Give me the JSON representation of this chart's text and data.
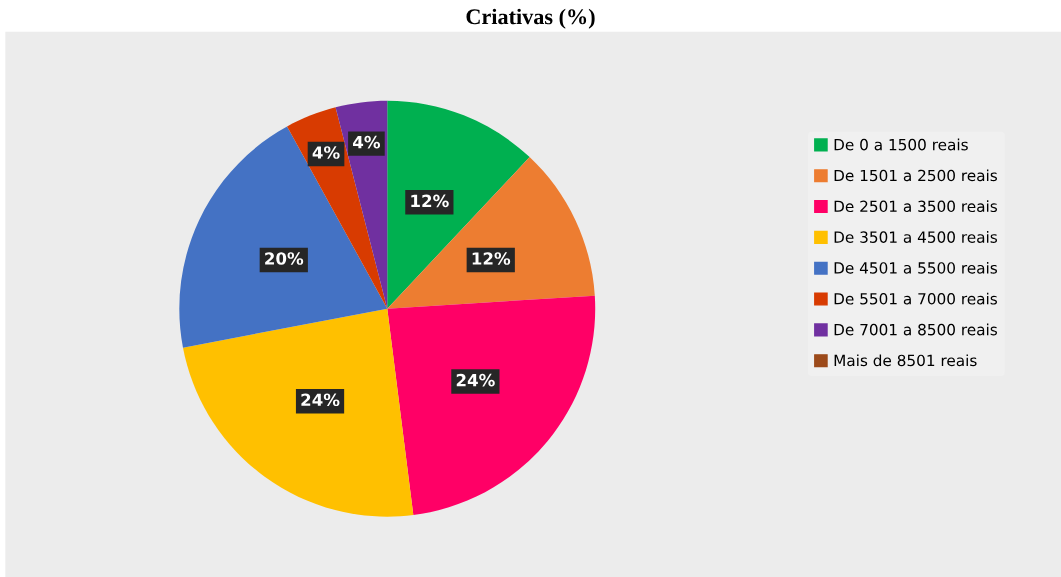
{
  "chart_data": {
    "type": "pie",
    "title": "Criativas (%)",
    "categories": [
      "De 0 a 1500 reais",
      "De 1501 a 2500 reais",
      "De 2501 a 3500 reais",
      "De 3501 a 4500 reais",
      "De 4501 a 5500 reais",
      "De 5501 a 7000 reais",
      "De 7001 a 8500 reais",
      "Mais de 8501 reais"
    ],
    "values": [
      12,
      12,
      24,
      24,
      20,
      4,
      4,
      0
    ],
    "value_labels": [
      "12%",
      "12%",
      "24%",
      "24%",
      "20%",
      "4%",
      "4%",
      null
    ],
    "colors": [
      "#00b050",
      "#ed7d31",
      "#ff0066",
      "#ffc000",
      "#4472c4",
      "#d83b01",
      "#7030a0",
      "#9c4a1a"
    ],
    "legend": "right"
  }
}
